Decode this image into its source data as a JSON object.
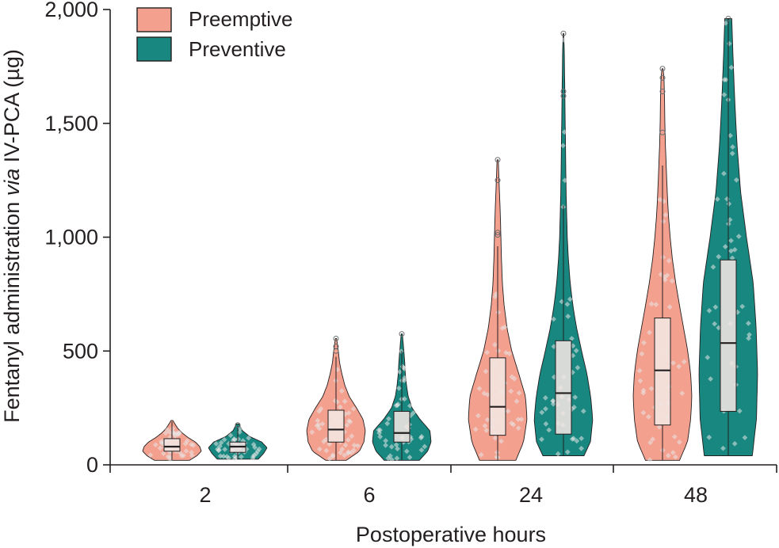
{
  "chart_data": {
    "type": "violin",
    "title": "",
    "xlabel": "Postoperative hours",
    "ylabel_parts": [
      "Fentanyl administration ",
      "via",
      " IV-PCA (µg)"
    ],
    "ylim": [
      0,
      2000
    ],
    "yticks": [
      0,
      500,
      1000,
      1500,
      2000
    ],
    "ytick_labels": [
      "0",
      "500",
      "1,000",
      "1,500",
      "2,000"
    ],
    "categories": [
      "2",
      "6",
      "24",
      "48"
    ],
    "legend_position": "top-left",
    "series": [
      {
        "name": "Preemptive",
        "color": "#f4a08f",
        "edge_color": "#231f20",
        "groups": [
          {
            "category": "2",
            "min": 20,
            "q1": 60,
            "median": 80,
            "q3": 115,
            "whisker_high": 190,
            "max": 195,
            "outliers": [],
            "density": [
              [
                20,
                0.6
              ],
              [
                40,
                0.85
              ],
              [
                60,
                1.0
              ],
              [
                80,
                0.95
              ],
              [
                100,
                0.8
              ],
              [
                120,
                0.55
              ],
              [
                140,
                0.35
              ],
              [
                160,
                0.2
              ],
              [
                180,
                0.1
              ],
              [
                195,
                0.03
              ]
            ]
          },
          {
            "category": "6",
            "min": 20,
            "q1": 100,
            "median": 155,
            "q3": 240,
            "whisker_high": 475,
            "max": 555,
            "outliers": [
              500,
              520,
              555
            ],
            "density": [
              [
                20,
                0.35
              ],
              [
                60,
                0.8
              ],
              [
                100,
                0.95
              ],
              [
                150,
                1.0
              ],
              [
                200,
                0.92
              ],
              [
                250,
                0.7
              ],
              [
                300,
                0.45
              ],
              [
                350,
                0.3
              ],
              [
                400,
                0.2
              ],
              [
                450,
                0.12
              ],
              [
                500,
                0.08
              ],
              [
                555,
                0.02
              ]
            ]
          },
          {
            "category": "24",
            "min": 20,
            "q1": 130,
            "median": 255,
            "q3": 470,
            "whisker_high": 960,
            "max": 1340,
            "outliers": [
              1010,
              1020,
              1250,
              1340
            ],
            "density": [
              [
                20,
                0.62
              ],
              [
                100,
                0.88
              ],
              [
                200,
                1.0
              ],
              [
                300,
                0.95
              ],
              [
                400,
                0.72
              ],
              [
                500,
                0.48
              ],
              [
                600,
                0.32
              ],
              [
                700,
                0.22
              ],
              [
                800,
                0.16
              ],
              [
                900,
                0.13
              ],
              [
                1000,
                0.11
              ],
              [
                1100,
                0.09
              ],
              [
                1200,
                0.06
              ],
              [
                1340,
                0.02
              ]
            ]
          },
          {
            "category": "48",
            "min": 20,
            "q1": 175,
            "median": 415,
            "q3": 645,
            "whisker_high": 1315,
            "max": 1740,
            "outliers": [
              1460,
              1640,
              1700,
              1740
            ],
            "density": [
              [
                20,
                0.58
              ],
              [
                100,
                0.85
              ],
              [
                200,
                0.96
              ],
              [
                300,
                1.0
              ],
              [
                400,
                0.96
              ],
              [
                500,
                0.86
              ],
              [
                600,
                0.72
              ],
              [
                700,
                0.58
              ],
              [
                800,
                0.45
              ],
              [
                900,
                0.34
              ],
              [
                1000,
                0.26
              ],
              [
                1100,
                0.2
              ],
              [
                1200,
                0.16
              ],
              [
                1300,
                0.13
              ],
              [
                1400,
                0.1
              ],
              [
                1500,
                0.08
              ],
              [
                1600,
                0.07
              ],
              [
                1700,
                0.05
              ],
              [
                1740,
                0.02
              ]
            ]
          }
        ]
      },
      {
        "name": "Preventive",
        "color": "#17877f",
        "edge_color": "#231f20",
        "groups": [
          {
            "category": "2",
            "min": 25,
            "q1": 55,
            "median": 80,
            "q3": 100,
            "whisker_high": 170,
            "max": 180,
            "outliers": [
              175
            ],
            "density": [
              [
                25,
                0.7
              ],
              [
                50,
                0.88
              ],
              [
                75,
                1.0
              ],
              [
                100,
                0.82
              ],
              [
                125,
                0.4
              ],
              [
                150,
                0.16
              ],
              [
                180,
                0.04
              ]
            ]
          },
          {
            "category": "6",
            "min": 20,
            "q1": 100,
            "median": 140,
            "q3": 235,
            "whisker_high": 500,
            "max": 575,
            "outliers": [
              575
            ],
            "density": [
              [
                20,
                0.6
              ],
              [
                60,
                0.88
              ],
              [
                100,
                1.0
              ],
              [
                150,
                0.96
              ],
              [
                200,
                0.62
              ],
              [
                250,
                0.35
              ],
              [
                300,
                0.22
              ],
              [
                350,
                0.16
              ],
              [
                400,
                0.12
              ],
              [
                450,
                0.1
              ],
              [
                500,
                0.07
              ],
              [
                575,
                0.02
              ]
            ]
          },
          {
            "category": "24",
            "min": 40,
            "q1": 135,
            "median": 315,
            "q3": 545,
            "whisker_high": 1140,
            "max": 1895,
            "outliers": [
              1620,
              1640,
              1895
            ],
            "density": [
              [
                40,
                0.7
              ],
              [
                100,
                0.92
              ],
              [
                200,
                1.0
              ],
              [
                300,
                0.93
              ],
              [
                400,
                0.8
              ],
              [
                500,
                0.62
              ],
              [
                600,
                0.45
              ],
              [
                700,
                0.32
              ],
              [
                800,
                0.23
              ],
              [
                900,
                0.17
              ],
              [
                1000,
                0.13
              ],
              [
                1200,
                0.09
              ],
              [
                1400,
                0.07
              ],
              [
                1600,
                0.05
              ],
              [
                1800,
                0.03
              ],
              [
                1895,
                0.01
              ]
            ]
          },
          {
            "category": "48",
            "min": 40,
            "q1": 235,
            "median": 535,
            "q3": 900,
            "whisker_high": 1960,
            "max": 1960,
            "outliers": [
              1960
            ],
            "density": [
              [
                40,
                0.82
              ],
              [
                200,
                0.96
              ],
              [
                400,
                1.0
              ],
              [
                600,
                0.95
              ],
              [
                800,
                0.85
              ],
              [
                1000,
                0.62
              ],
              [
                1200,
                0.42
              ],
              [
                1400,
                0.3
              ],
              [
                1600,
                0.22
              ],
              [
                1800,
                0.16
              ],
              [
                1960,
                0.12
              ]
            ]
          }
        ]
      }
    ]
  }
}
